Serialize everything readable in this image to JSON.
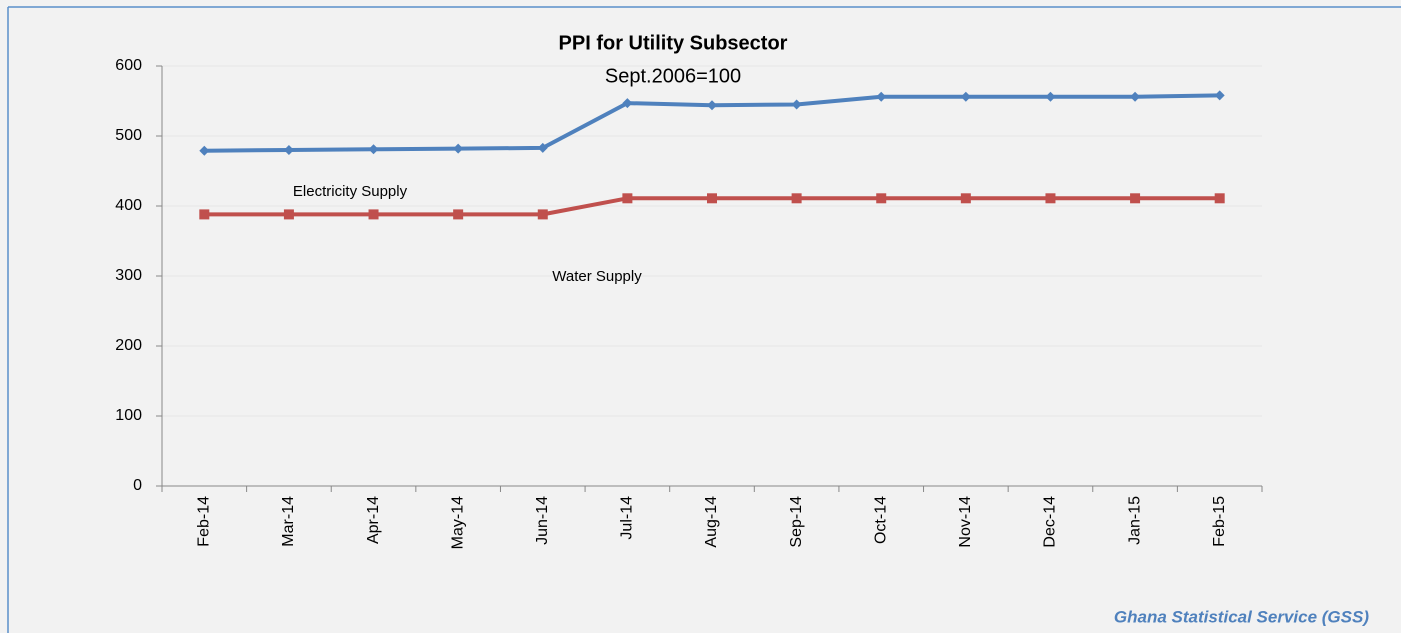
{
  "chart_data": {
    "type": "line",
    "title": "PPI  for Utility Subsector",
    "subtitle": "Sept.2006=100",
    "categories": [
      "Feb-14",
      "Mar-14",
      "Apr-14",
      "May-14",
      "Jun-14",
      "Jul-14",
      "Aug-14",
      "Sep-14",
      "Oct-14",
      "Nov-14",
      "Dec-14",
      "Jan-15",
      "Feb-15"
    ],
    "series": [
      {
        "name": "Electricity Supply",
        "color": "#4f81bd",
        "marker": "diamond",
        "values": [
          479,
          480,
          481,
          482,
          483,
          547,
          544,
          545,
          556,
          556,
          556,
          556,
          558
        ]
      },
      {
        "name": "Water Supply",
        "color": "#c0504d",
        "marker": "square",
        "values": [
          388,
          388,
          388,
          388,
          388,
          411,
          411,
          411,
          411,
          411,
          411,
          411,
          411
        ]
      }
    ],
    "ylim": [
      0,
      600
    ],
    "yticks": [
      0,
      100,
      200,
      300,
      400,
      500,
      600
    ],
    "grid": true,
    "source": "Ghana Statistical Service (GSS)"
  }
}
